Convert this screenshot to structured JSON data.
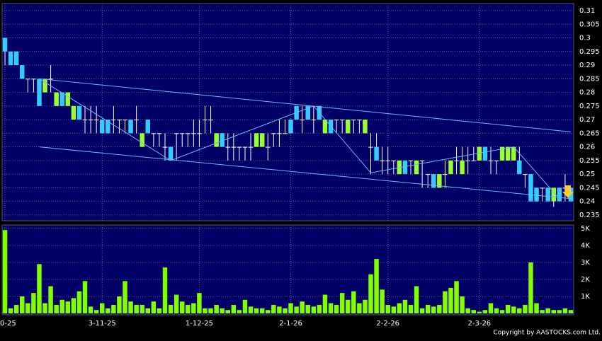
{
  "chart_data": {
    "type": "candlestick",
    "categories": [
      "0-25",
      null,
      null,
      null,
      null,
      null,
      null,
      null,
      null,
      null,
      null,
      null,
      null,
      null,
      null,
      null,
      null,
      "3-11-25",
      null,
      null,
      null,
      null,
      null,
      null,
      null,
      null,
      null,
      null,
      null,
      null,
      null,
      null,
      null,
      null,
      "1-12-25",
      null,
      null,
      null,
      null,
      null,
      null,
      null,
      null,
      null,
      null,
      null,
      null,
      null,
      null,
      null,
      "2-1-26",
      null,
      null,
      null,
      null,
      null,
      null,
      null,
      null,
      null,
      null,
      null,
      null,
      null,
      null,
      null,
      null,
      "2-2-26",
      null,
      null,
      null,
      null,
      null,
      null,
      null,
      null,
      null,
      null,
      null,
      null,
      null,
      null,
      null,
      "2-3-26",
      null,
      null,
      null,
      null,
      null,
      null,
      null,
      null,
      null,
      null,
      null,
      null,
      null,
      null,
      null,
      null
    ],
    "open": [
      0.3,
      0.295,
      0.295,
      0.29,
      0.285,
      0.285,
      0.285,
      0.28,
      0.285,
      0.275,
      0.28,
      0.275,
      0.27,
      0.275,
      0.27,
      0.27,
      0.27,
      0.27,
      0.27,
      0.27,
      0.27,
      0.27,
      0.27,
      0.27,
      0.26,
      0.27,
      0.265,
      0.265,
      0.26,
      0.26,
      0.265,
      0.265,
      0.265,
      0.265,
      0.265,
      0.27,
      0.27,
      0.26,
      0.265,
      0.26,
      0.26,
      0.26,
      0.26,
      0.26,
      0.26,
      0.26,
      0.26,
      0.265,
      0.265,
      0.265,
      0.27,
      0.275,
      0.27,
      0.275,
      0.27,
      0.275,
      0.265,
      0.27,
      0.27,
      0.27,
      0.265,
      0.27,
      0.27,
      0.265,
      0.26,
      0.26,
      0.255,
      0.255,
      0.255,
      0.25,
      0.255,
      0.255,
      0.25,
      0.255,
      0.25,
      0.25,
      0.245,
      0.25,
      0.25,
      0.255,
      0.25,
      0.255,
      0.255,
      0.255,
      0.26,
      0.255,
      0.255,
      0.255,
      0.255,
      0.255,
      0.255,
      0.25,
      0.25,
      0.245,
      0.245,
      0.245,
      0.24,
      0.245,
      0.245,
      0.245
    ],
    "high": [
      0.3,
      0.295,
      0.295,
      0.29,
      0.285,
      0.285,
      0.285,
      0.285,
      0.29,
      0.28,
      0.28,
      0.28,
      0.275,
      0.275,
      0.275,
      0.275,
      0.275,
      0.27,
      0.27,
      0.275,
      0.27,
      0.27,
      0.27,
      0.275,
      0.265,
      0.27,
      0.265,
      0.265,
      0.265,
      0.26,
      0.265,
      0.265,
      0.265,
      0.27,
      0.27,
      0.275,
      0.275,
      0.265,
      0.265,
      0.265,
      0.265,
      0.26,
      0.26,
      0.265,
      0.265,
      0.265,
      0.265,
      0.265,
      0.27,
      0.27,
      0.27,
      0.275,
      0.275,
      0.275,
      0.275,
      0.275,
      0.27,
      0.27,
      0.27,
      0.27,
      0.27,
      0.27,
      0.27,
      0.27,
      0.265,
      0.265,
      0.26,
      0.26,
      0.255,
      0.255,
      0.255,
      0.255,
      0.255,
      0.255,
      0.25,
      0.25,
      0.25,
      0.255,
      0.255,
      0.26,
      0.26,
      0.26,
      0.26,
      0.26,
      0.26,
      0.26,
      0.255,
      0.26,
      0.26,
      0.26,
      0.26,
      0.25,
      0.25,
      0.245,
      0.245,
      0.245,
      0.245,
      0.245,
      0.25,
      0.245
    ],
    "low": [
      0.29,
      0.29,
      0.29,
      0.285,
      0.28,
      0.28,
      0.275,
      0.28,
      0.28,
      0.275,
      0.275,
      0.275,
      0.27,
      0.27,
      0.265,
      0.265,
      0.265,
      0.265,
      0.265,
      0.265,
      0.265,
      0.265,
      0.265,
      0.265,
      0.26,
      0.265,
      0.26,
      0.26,
      0.255,
      0.255,
      0.255,
      0.26,
      0.26,
      0.26,
      0.26,
      0.265,
      0.265,
      0.26,
      0.26,
      0.255,
      0.255,
      0.255,
      0.255,
      0.255,
      0.26,
      0.26,
      0.255,
      0.26,
      0.26,
      0.265,
      0.265,
      0.27,
      0.265,
      0.27,
      0.265,
      0.27,
      0.265,
      0.265,
      0.265,
      0.265,
      0.265,
      0.265,
      0.265,
      0.265,
      0.25,
      0.255,
      0.25,
      0.25,
      0.25,
      0.25,
      0.25,
      0.25,
      0.25,
      0.245,
      0.245,
      0.245,
      0.245,
      0.245,
      0.25,
      0.25,
      0.25,
      0.25,
      0.255,
      0.255,
      0.255,
      0.25,
      0.25,
      0.255,
      0.255,
      0.255,
      0.25,
      0.245,
      0.24,
      0.24,
      0.24,
      0.24,
      0.238,
      0.24,
      0.24,
      0.24
    ],
    "close": [
      0.295,
      0.29,
      0.29,
      0.285,
      0.285,
      0.285,
      0.275,
      0.285,
      0.285,
      0.28,
      0.275,
      0.28,
      0.275,
      0.27,
      0.27,
      0.27,
      0.27,
      0.265,
      0.265,
      0.27,
      0.27,
      0.27,
      0.265,
      0.27,
      0.265,
      0.265,
      0.265,
      0.265,
      0.26,
      0.255,
      0.265,
      0.265,
      0.265,
      0.265,
      0.265,
      0.27,
      0.27,
      0.265,
      0.26,
      0.26,
      0.26,
      0.26,
      0.26,
      0.26,
      0.265,
      0.265,
      0.26,
      0.265,
      0.265,
      0.265,
      0.265,
      0.27,
      0.27,
      0.27,
      0.27,
      0.27,
      0.27,
      0.265,
      0.27,
      0.27,
      0.27,
      0.27,
      0.27,
      0.27,
      0.26,
      0.255,
      0.255,
      0.255,
      0.255,
      0.255,
      0.25,
      0.255,
      0.255,
      0.255,
      0.25,
      0.245,
      0.25,
      0.25,
      0.255,
      0.255,
      0.255,
      0.255,
      0.255,
      0.26,
      0.255,
      0.255,
      0.255,
      0.26,
      0.26,
      0.26,
      0.25,
      0.25,
      0.24,
      0.24,
      0.245,
      0.24,
      0.245,
      0.24,
      0.245,
      0.24
    ],
    "volume": [
      4900,
      300,
      500,
      1000,
      600,
      1200,
      2900,
      600,
      1600,
      500,
      800,
      700,
      900,
      1300,
      1900,
      400,
      200,
      600,
      300,
      500,
      1000,
      1900,
      700,
      500,
      500,
      300,
      700,
      300,
      2700,
      500,
      1100,
      700,
      500,
      600,
      1200,
      300,
      300,
      500,
      300,
      200,
      500,
      200,
      800,
      400,
      300,
      300,
      200,
      500,
      400,
      300,
      600,
      400,
      700,
      500,
      400,
      500,
      1100,
      600,
      500,
      1200,
      800,
      1300,
      600,
      800,
      2300,
      3200,
      1400,
      500,
      400,
      600,
      800,
      500,
      1600,
      300,
      500,
      400,
      500,
      1300,
      1500,
      1900,
      1000,
      300,
      200,
      100,
      200,
      600,
      300,
      200,
      500,
      400,
      300,
      500,
      3000,
      600,
      200,
      300,
      200,
      200,
      300,
      200
    ],
    "ylim": [
      0.2329,
      0.3126
    ],
    "yticks": [
      0.31,
      0.305,
      0.3,
      0.295,
      0.29,
      0.285,
      0.28,
      0.275,
      0.27,
      0.265,
      0.26,
      0.255,
      0.25,
      0.245,
      0.24,
      0.235
    ],
    "volume_ylim": [
      0,
      5200
    ],
    "volume_yticks": [
      {
        "value": 5000,
        "label": "5K"
      },
      {
        "value": 4000,
        "label": "4K"
      },
      {
        "value": 3000,
        "label": "3K"
      },
      {
        "value": 2000,
        "label": "2K"
      },
      {
        "value": 1000,
        "label": "1K"
      }
    ],
    "up_color": "#99ff33",
    "down_color": "#33ccff",
    "doji_color": "#ffffff",
    "volume_color": "#80ff00",
    "line_color": "#6fb6ff",
    "grid": true,
    "trendlines": [
      {
        "x": [
          6,
          99
        ],
        "y": [
          0.285,
          0.2655
        ]
      },
      {
        "x": [
          6,
          99
        ],
        "y": [
          0.26,
          0.241
        ]
      },
      {
        "x": [
          6,
          29,
          54,
          64,
          89,
          97
        ],
        "y": [
          0.285,
          0.255,
          0.275,
          0.2505,
          0.26,
          0.241
        ]
      }
    ],
    "copyright": "Copyright by AASTOCKS.com Ltd."
  }
}
